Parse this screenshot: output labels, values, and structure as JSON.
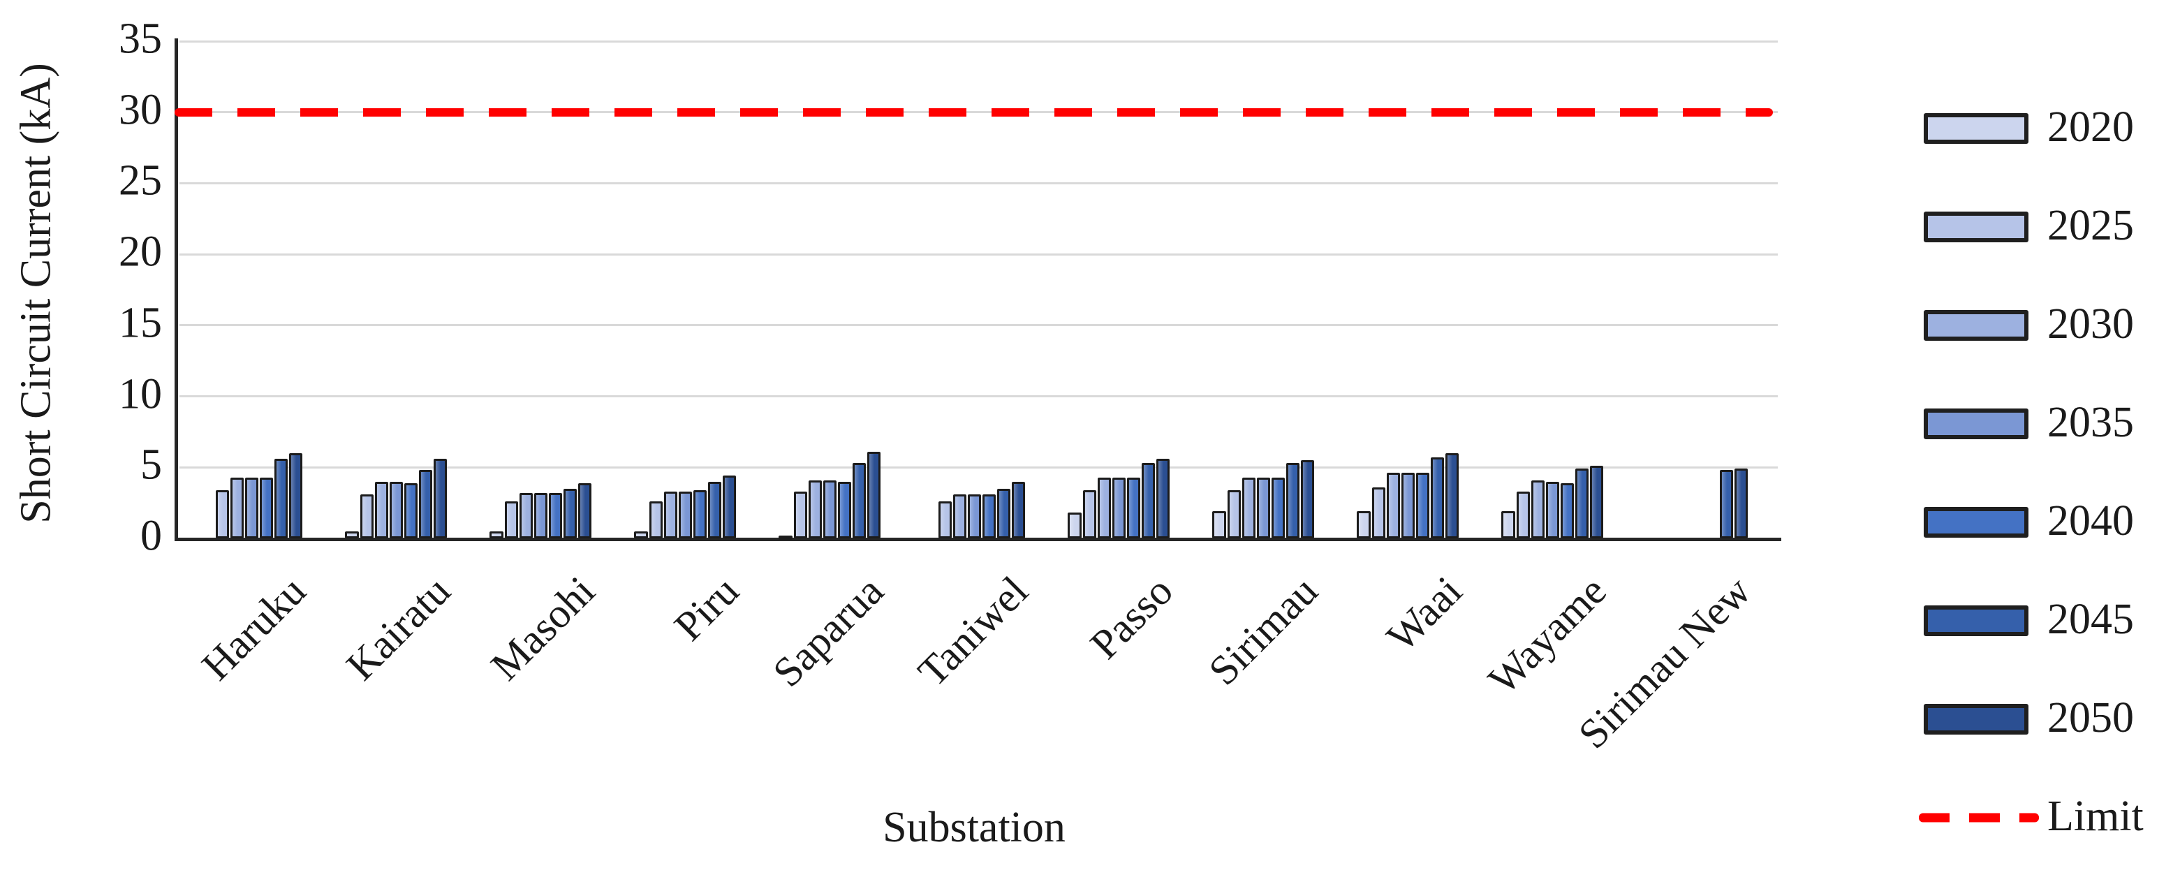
{
  "chart_data": {
    "type": "bar",
    "title": "",
    "xlabel": "Substation",
    "ylabel": "Short Circuit Current (kA)",
    "ylim": [
      0,
      35
    ],
    "yticks": [
      0,
      5,
      10,
      15,
      20,
      25,
      30,
      35
    ],
    "grid": true,
    "legend_position": "right",
    "categories": [
      "Haruku",
      "Kairatu",
      "Masohi",
      "Piru",
      "Saparua",
      "Taniwel",
      "Passo",
      "Sirimau",
      "Waai",
      "Wayame",
      "Sirimau New"
    ],
    "series": [
      {
        "name": "2020",
        "color": "#ccd5ee",
        "values": [
          null,
          0.5,
          0.5,
          0.5,
          0.2,
          null,
          1.8,
          1.9,
          1.9,
          1.9,
          null
        ]
      },
      {
        "name": "2025",
        "color": "#b6c4e8",
        "values": [
          3.4,
          3.1,
          2.6,
          2.6,
          3.3,
          2.6,
          3.4,
          3.4,
          3.6,
          3.3,
          null
        ]
      },
      {
        "name": "2030",
        "color": "#9db1e0",
        "values": [
          4.3,
          4.0,
          3.2,
          3.3,
          4.1,
          3.1,
          4.3,
          4.3,
          4.6,
          4.1,
          null
        ]
      },
      {
        "name": "2035",
        "color": "#7b97d4",
        "values": [
          4.3,
          4.0,
          3.2,
          3.3,
          4.1,
          3.1,
          4.3,
          4.3,
          4.6,
          4.0,
          null
        ]
      },
      {
        "name": "2040",
        "color": "#4472c4",
        "values": [
          4.3,
          3.9,
          3.2,
          3.4,
          4.0,
          3.1,
          4.3,
          4.3,
          4.6,
          3.9,
          null
        ]
      },
      {
        "name": "2045",
        "color": "#3560ab",
        "values": [
          5.6,
          4.8,
          3.5,
          4.0,
          5.3,
          3.5,
          5.3,
          5.3,
          5.7,
          4.9,
          4.8
        ]
      },
      {
        "name": "2050",
        "color": "#2b4f92",
        "values": [
          6.0,
          5.6,
          3.9,
          4.4,
          6.1,
          4.0,
          5.6,
          5.5,
          6.0,
          5.1,
          4.9
        ]
      }
    ],
    "limit_line": {
      "label": "Limit",
      "value": 30,
      "color": "#ff0000",
      "style": "dashed"
    }
  },
  "legend": {
    "items": [
      "2020",
      "2025",
      "2030",
      "2035",
      "2040",
      "2045",
      "2050",
      "Limit"
    ]
  },
  "colors": {
    "gridline": "#d9d9d9",
    "axis": "#262626",
    "bar_border": "#1c1c1c",
    "limit": "#ff0000",
    "background": "#ffffff"
  }
}
